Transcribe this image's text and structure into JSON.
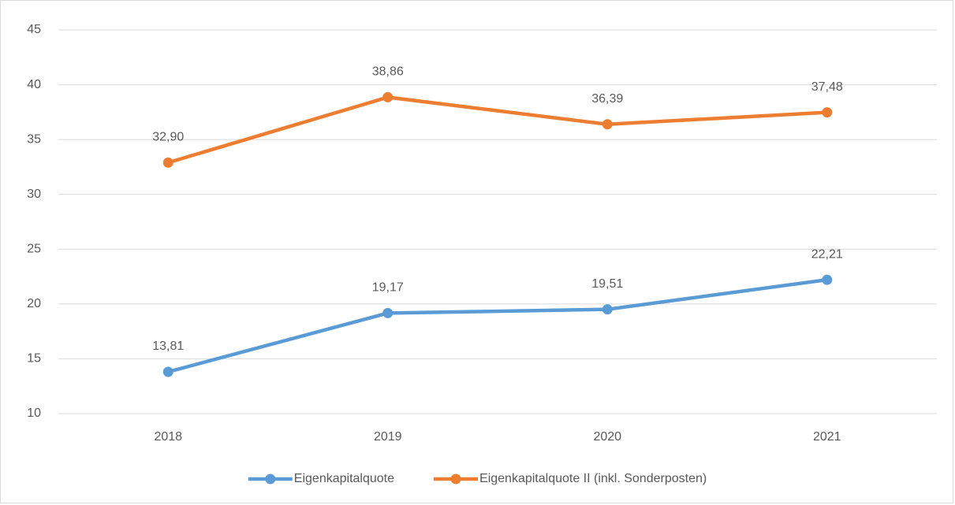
{
  "chart_data": {
    "type": "line",
    "categories": [
      "2018",
      "2019",
      "2020",
      "2021"
    ],
    "series": [
      {
        "name": "Eigenkapitalquote",
        "color": "#5b9bd5",
        "values": [
          13.81,
          19.17,
          19.51,
          22.21
        ],
        "value_labels": [
          "13,81",
          "19,17",
          "19,51",
          "22,21"
        ]
      },
      {
        "name": "Eigenkapitalquote II (inkl. Sonderposten)",
        "color": "#ed7d31",
        "values": [
          32.9,
          38.86,
          36.39,
          37.48
        ],
        "value_labels": [
          "32,90",
          "38,86",
          "36,39",
          "37,48"
        ]
      }
    ],
    "ylim": [
      10,
      45
    ],
    "yticks": [
      10,
      15,
      20,
      25,
      30,
      35,
      40,
      45
    ],
    "grid": true,
    "legend": "bottom"
  }
}
